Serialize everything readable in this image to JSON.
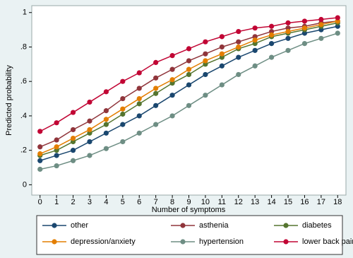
{
  "chart_data": {
    "type": "line",
    "x": [
      0,
      1,
      2,
      3,
      4,
      5,
      6,
      7,
      8,
      9,
      10,
      11,
      12,
      13,
      14,
      15,
      16,
      17,
      18
    ],
    "xlim": [
      -0.5,
      18.5
    ],
    "xticks": [
      0,
      1,
      2,
      3,
      4,
      5,
      6,
      7,
      8,
      9,
      10,
      11,
      12,
      13,
      14,
      15,
      16,
      17,
      18
    ],
    "ylim": [
      -0.06,
      1.04
    ],
    "yticks": [
      0,
      {
        "value": 0.2,
        "label": ".2"
      },
      {
        "value": 0.4,
        "label": ".4"
      },
      {
        "value": 0.6,
        "label": ".6"
      },
      {
        "value": 0.8,
        "label": ".8"
      },
      1
    ],
    "xlabel": "Number of symptoms",
    "ylabel": "Predicted probability",
    "legend": "bottom",
    "series": [
      {
        "name": "other",
        "color": "#1a476f",
        "values": [
          0.14,
          0.17,
          0.2,
          0.25,
          0.3,
          0.35,
          0.4,
          0.46,
          0.52,
          0.58,
          0.64,
          0.69,
          0.74,
          0.78,
          0.82,
          0.85,
          0.88,
          0.9,
          0.92
        ]
      },
      {
        "name": "asthenia",
        "color": "#90353b",
        "values": [
          0.22,
          0.26,
          0.32,
          0.37,
          0.43,
          0.5,
          0.56,
          0.62,
          0.67,
          0.72,
          0.76,
          0.8,
          0.83,
          0.86,
          0.89,
          0.91,
          0.92,
          0.94,
          0.95
        ]
      },
      {
        "name": "diabetes",
        "color": "#55752f",
        "values": [
          0.17,
          0.2,
          0.25,
          0.3,
          0.35,
          0.41,
          0.47,
          0.53,
          0.59,
          0.64,
          0.7,
          0.74,
          0.79,
          0.82,
          0.86,
          0.88,
          0.9,
          0.92,
          0.94
        ]
      },
      {
        "name": "depression/anxiety",
        "color": "#e37e00",
        "values": [
          0.18,
          0.22,
          0.27,
          0.32,
          0.38,
          0.44,
          0.5,
          0.56,
          0.61,
          0.67,
          0.72,
          0.76,
          0.8,
          0.84,
          0.87,
          0.89,
          0.91,
          0.93,
          0.95
        ]
      },
      {
        "name": "hypertension",
        "color": "#6e8e84",
        "values": [
          0.09,
          0.11,
          0.14,
          0.17,
          0.21,
          0.25,
          0.3,
          0.35,
          0.4,
          0.46,
          0.52,
          0.58,
          0.64,
          0.69,
          0.74,
          0.78,
          0.82,
          0.85,
          0.88
        ]
      },
      {
        "name": "lower back pain",
        "color": "#c10534",
        "values": [
          0.31,
          0.36,
          0.42,
          0.48,
          0.54,
          0.6,
          0.65,
          0.71,
          0.75,
          0.79,
          0.83,
          0.86,
          0.89,
          0.91,
          0.92,
          0.94,
          0.95,
          0.96,
          0.97
        ]
      }
    ]
  }
}
